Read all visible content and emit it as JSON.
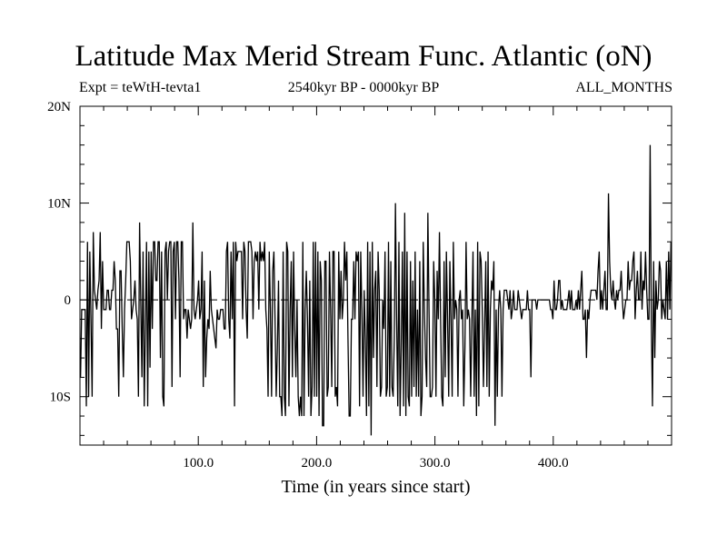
{
  "header": {
    "title": "Latitude Max Merid Stream Func. Atlantic (oN)",
    "expt": "Expt = teWtH-tevta1",
    "period": "2540kyr BP - 0000kyr BP",
    "season": "ALL_MONTHS"
  },
  "chart_data": {
    "type": "line",
    "title": "Latitude Max Merid Stream Func. Atlantic (oN)",
    "xlabel": "Time (in years since start)",
    "ylabel": "",
    "xlim": [
      0,
      500
    ],
    "ylim": [
      -15,
      20
    ],
    "x_ticks": [
      {
        "value": 100,
        "label": "100.0"
      },
      {
        "value": 200,
        "label": "200.0"
      },
      {
        "value": 300,
        "label": "300.0"
      },
      {
        "value": 400,
        "label": "400.0"
      }
    ],
    "y_ticks": [
      {
        "value": 20,
        "label": "20N"
      },
      {
        "value": 10,
        "label": "10N"
      },
      {
        "value": 0,
        "label": "0"
      },
      {
        "value": -10,
        "label": "10S"
      }
    ],
    "zero_line": "dashed",
    "grid": false,
    "series": [
      {
        "values": [
          -8,
          -1,
          -1,
          -1,
          -1,
          -11,
          6,
          -10,
          5,
          -2,
          -10,
          7,
          1,
          0,
          -1,
          1,
          2,
          7,
          -3,
          4,
          -1,
          -1,
          -1,
          1,
          1,
          -1,
          -1,
          1,
          1,
          4,
          2,
          -3,
          -3,
          -10,
          3,
          3,
          -3,
          -8,
          -1,
          2,
          6,
          6,
          6,
          4,
          -2,
          -1,
          0,
          2,
          -1,
          -2,
          -10,
          8,
          0,
          -8,
          5,
          -11,
          -3,
          6,
          -11,
          5,
          -7,
          5,
          -3,
          6,
          6,
          2,
          2,
          6,
          6,
          -6,
          5,
          -10,
          -11,
          5,
          6,
          0,
          5,
          6,
          6,
          -9,
          5,
          6,
          -2,
          6,
          6,
          2,
          -8,
          6,
          6,
          -2,
          -1,
          -1,
          -4,
          -1,
          -2,
          -3,
          -2,
          8,
          -1,
          -2,
          -1,
          0,
          2,
          -2,
          -1,
          5,
          -9,
          2,
          -8,
          -4,
          -2,
          -3,
          3,
          -1,
          -2,
          -3,
          -4,
          -5,
          -1,
          -2,
          -2,
          -1,
          -1,
          -1,
          -3,
          -3,
          5,
          6,
          -2,
          -4,
          5,
          -2,
          6,
          -11,
          6,
          4,
          5,
          5,
          5,
          5,
          -2,
          6,
          5,
          -1,
          -4,
          6,
          6,
          6,
          5,
          -2,
          4,
          5,
          4,
          5,
          -1,
          6,
          4,
          5,
          4,
          6,
          -1,
          -3,
          -10,
          5,
          -1,
          -10,
          3,
          5,
          -2,
          -10,
          -5,
          2,
          -10,
          -10,
          -12,
          5,
          -10,
          -12,
          6,
          5,
          -11,
          -1,
          4,
          -8,
          5,
          -3,
          -8,
          0,
          -10,
          -12,
          -10,
          -12,
          6,
          -12,
          -1,
          3,
          -2,
          -10,
          2,
          -12,
          -9,
          6,
          -10,
          6,
          -10,
          5,
          -12,
          4,
          2,
          -13,
          -13,
          4,
          4,
          -10,
          -9,
          5,
          -1,
          -9,
          5,
          5,
          -10,
          -9,
          -11,
          5,
          -2,
          3,
          -2,
          0,
          6,
          2,
          5,
          -4,
          -12,
          -12,
          -2,
          -2,
          4,
          -2,
          5,
          4,
          5,
          -11,
          5,
          -1,
          -10,
          1,
          -4,
          -12,
          6,
          -11,
          5,
          -14,
          6,
          -6,
          1,
          3,
          -9,
          5,
          1,
          -10,
          -9,
          0,
          -3,
          5,
          -10,
          -9,
          6,
          -10,
          4,
          -9,
          -10,
          -4,
          10,
          -2,
          -11,
          6,
          -12,
          -5,
          5,
          -11,
          9,
          -12,
          5,
          -10,
          -11,
          4,
          -10,
          2,
          -9,
          5,
          -10,
          -1,
          -10,
          4,
          -12,
          -10,
          6,
          -1,
          -6,
          -9,
          9,
          -1,
          -10,
          -10,
          -9,
          4,
          0,
          -10,
          3,
          -2,
          7,
          -2,
          -10,
          -11,
          4,
          -8,
          5,
          -2,
          -10,
          4,
          -2,
          -10,
          6,
          -2,
          0,
          -1,
          -10,
          0,
          1,
          -2,
          -1,
          -11,
          -5,
          6,
          -2,
          -1,
          -2,
          -10,
          -2,
          5,
          -10,
          -1,
          -12,
          6,
          -11,
          5,
          4,
          -1,
          -9,
          -3,
          4,
          -9,
          5,
          -10,
          -1,
          2,
          1,
          4,
          -13,
          -1,
          -10,
          -1,
          1,
          -1,
          -10,
          -1,
          1,
          1,
          1,
          0,
          -1,
          1,
          -2,
          -1,
          1,
          -1,
          -1,
          -1,
          1,
          0,
          -1,
          -2,
          -1,
          -1,
          -1,
          -1,
          1,
          -1,
          -1,
          -8,
          0,
          0,
          0,
          0,
          -1,
          0,
          0,
          0,
          0,
          0,
          0,
          0,
          0,
          0,
          0,
          0,
          -1,
          -1,
          -2,
          2,
          -1,
          -1,
          0,
          2,
          2,
          -1,
          0,
          -1,
          -1,
          -1,
          -1,
          0,
          1,
          -1,
          1,
          -1,
          -1,
          -1,
          0,
          -1,
          1,
          -1,
          1,
          3,
          -2,
          -2,
          -1,
          -6,
          -1,
          -2,
          0,
          1,
          1,
          1,
          1,
          1,
          0,
          3,
          5,
          -1,
          1,
          -1,
          1,
          3,
          -1,
          -1,
          11,
          4,
          1,
          0,
          2,
          0,
          -1,
          1,
          0,
          1,
          1,
          3,
          0,
          -2,
          -1,
          0,
          0,
          4,
          1,
          2,
          2,
          4,
          5,
          -2,
          1,
          3,
          0,
          0,
          5,
          -1,
          2,
          1,
          5,
          1,
          -2,
          -2,
          16,
          -2,
          -11,
          4,
          -6,
          2,
          -1,
          0,
          4,
          3,
          -2,
          0,
          -1,
          -2,
          4,
          -2,
          5,
          -1,
          6
        ]
      }
    ]
  }
}
